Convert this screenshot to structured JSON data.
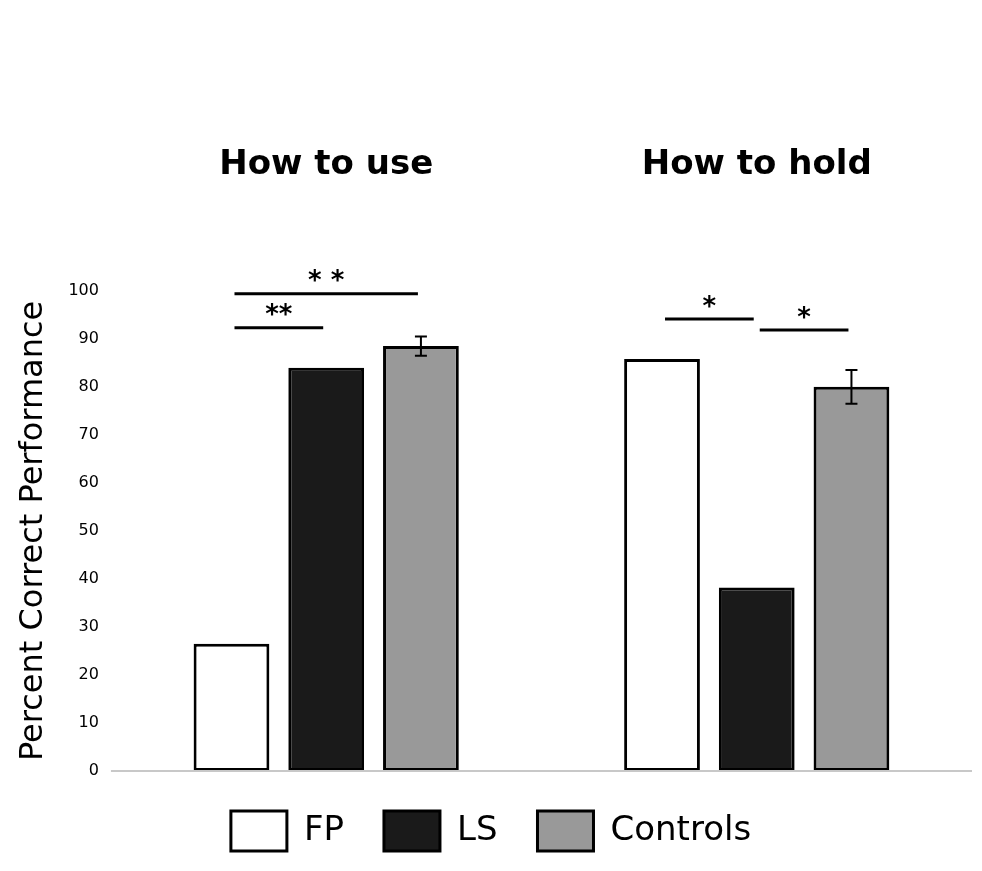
{
  "chart_data": {
    "type": "bar",
    "categories": [
      "How to use",
      "How to hold"
    ],
    "y_label": "Percent Correct Performance",
    "series": [
      {
        "name": "FP",
        "color": "#ffffff",
        "values": [
          26.5,
          85.8
        ]
      },
      {
        "name": "LS",
        "color": "#1a1a1a",
        "values": [
          84,
          38.2
        ]
      },
      {
        "name": "Controls",
        "color": "#999999",
        "values": [
          88.5,
          80
        ],
        "errors": [
          2,
          3.5
        ]
      }
    ],
    "ylim": [
      0,
      100
    ],
    "yticks": [
      0,
      10,
      20,
      30,
      40,
      50,
      60,
      70,
      80,
      90,
      100
    ],
    "grid": false,
    "legend": "bottom",
    "annotations": [
      {
        "category": "How to use",
        "from": "FP",
        "to": "LS",
        "text": "**"
      },
      {
        "category": "How to use",
        "from": "FP",
        "to": "Controls",
        "text": "* *"
      },
      {
        "category": "How to hold",
        "from": "FP",
        "to": "LS",
        "text": "*"
      },
      {
        "category": "How to hold",
        "from": "LS",
        "to": "Controls",
        "text": "*"
      }
    ]
  }
}
